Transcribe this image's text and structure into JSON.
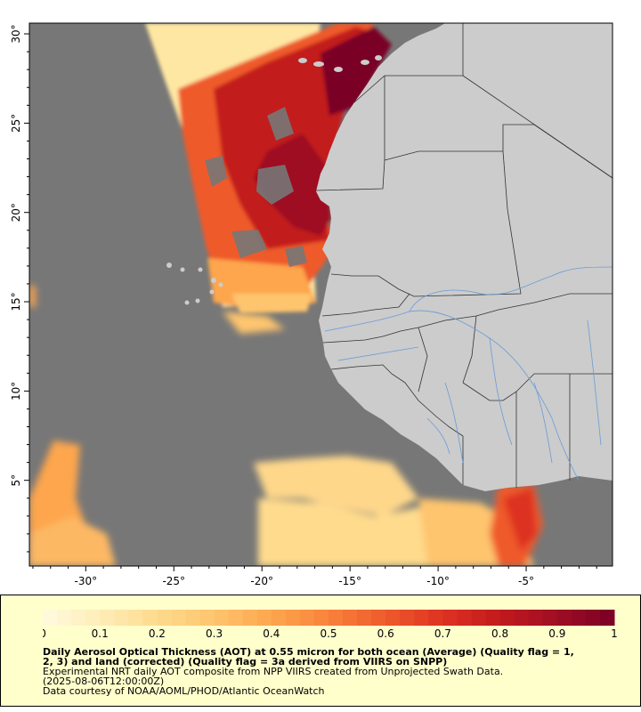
{
  "map": {
    "colors": {
      "no_data": "#777777",
      "land": "#cccccc",
      "borders": "#333333",
      "rivers": "#6b9bd6",
      "legend_bg": "#ffffcc"
    },
    "x_axis_ticks": [
      "-30°",
      "-25°",
      "-20°",
      "-15°",
      "-10°",
      "-5°"
    ],
    "y_axis_ticks": [
      "30°",
      "25°",
      "20°",
      "15°",
      "10°",
      "5°"
    ],
    "extent": {
      "lon_min": -33.2,
      "lon_max": -0.1,
      "lat_min": 0.2,
      "lat_max": 30.6
    }
  },
  "legend": {
    "tick_labels": [
      "0",
      "0.1",
      "0.2",
      "0.3",
      "0.4",
      "0.5",
      "0.6",
      "0.7",
      "0.8",
      "0.9",
      "1"
    ],
    "title_line1": "Daily Aerosol Optical Thickness (AOT) at 0.55 micron for both ocean (Average) (Quality flag = 1,",
    "title_line2": "2, 3) and land (corrected) (Quality flag = 3a derived from VIIRS on SNPP)",
    "line3": "Experimental NRT daily AOT composite from NPP VIIRS created from Unprojected Swath Data.",
    "line4": "(2025-08-06T12:00:00Z)",
    "line5": "Data courtesy of NOAA/AOML/PHOD/Atlantic OceanWatch",
    "colormap": [
      "#fffbe0",
      "#feedb8",
      "#fedb8d",
      "#fec56e",
      "#fda64e",
      "#f8823b",
      "#ef5a2c",
      "#dd3221",
      "#c21a1e",
      "#9e0d24",
      "#7a0026"
    ]
  }
}
